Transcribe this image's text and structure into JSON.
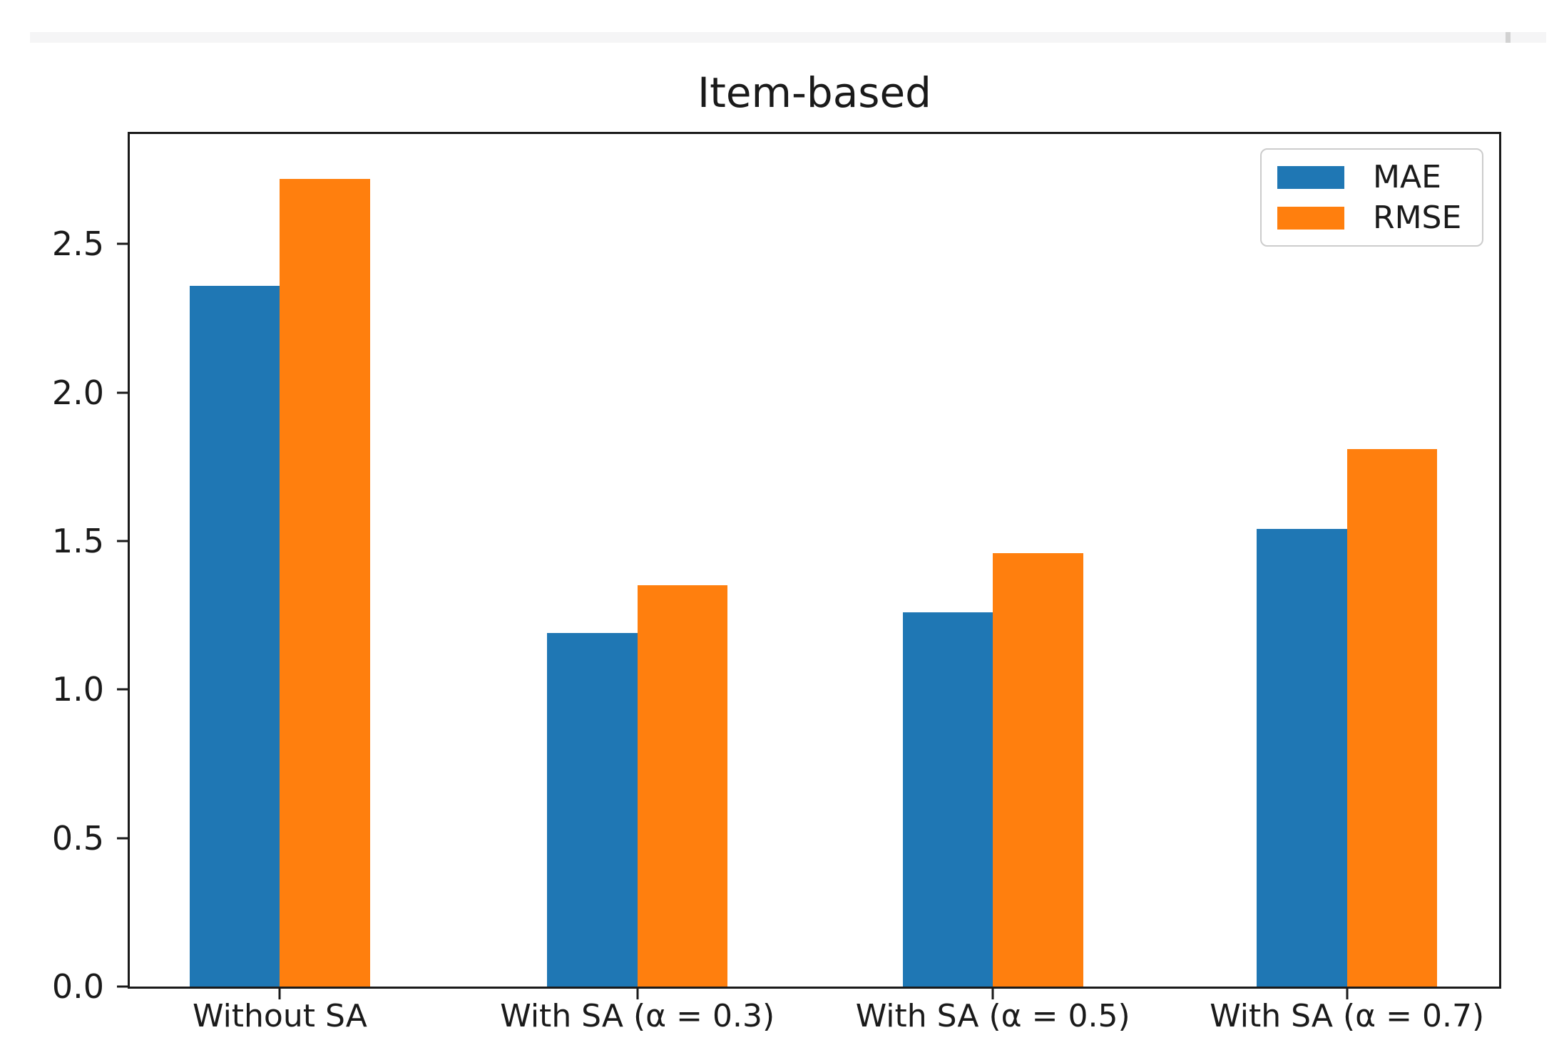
{
  "chart_data": {
    "type": "bar",
    "title": "Item-based",
    "categories": [
      "Without SA",
      "With SA (α = 0.3)",
      "With SA (α = 0.5)",
      "With SA (α = 0.7)"
    ],
    "series": [
      {
        "name": "MAE",
        "color": "#1f77b4",
        "values": [
          2.36,
          1.19,
          1.26,
          1.54
        ]
      },
      {
        "name": "RMSE",
        "color": "#ff7f0e",
        "values": [
          2.72,
          1.35,
          1.46,
          1.81
        ]
      }
    ],
    "xlabel": "",
    "ylabel": "",
    "ylim": [
      0,
      2.87
    ],
    "yticks": [
      "0.0",
      "0.5",
      "1.0",
      "1.5",
      "2.0",
      "2.5"
    ],
    "grid": false,
    "legend_position": "upper right"
  }
}
